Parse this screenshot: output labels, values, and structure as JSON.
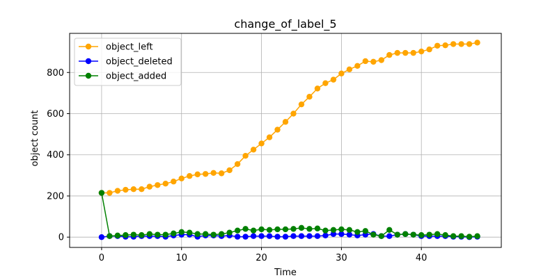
{
  "chart_data": {
    "type": "line",
    "title": "change_of_label_5",
    "xlabel": "Time",
    "ylabel": "object count",
    "xlim": [
      -4,
      50
    ],
    "ylim": [
      -50,
      990
    ],
    "xticks": [
      0,
      10,
      20,
      30,
      40
    ],
    "yticks": [
      0,
      200,
      400,
      600,
      800
    ],
    "grid": true,
    "legend_position": "top-left",
    "x": [
      0,
      1,
      2,
      3,
      4,
      5,
      6,
      7,
      8,
      9,
      10,
      11,
      12,
      13,
      14,
      15,
      16,
      17,
      18,
      19,
      20,
      21,
      22,
      23,
      24,
      25,
      26,
      27,
      28,
      29,
      30,
      31,
      32,
      33,
      34,
      35,
      36,
      37,
      38,
      39,
      40,
      41,
      42,
      43,
      44,
      45,
      46,
      47
    ],
    "series": [
      {
        "name": "object_left",
        "color": "#ffa500",
        "values": [
          215,
          215,
          225,
          230,
          233,
          233,
          245,
          253,
          260,
          270,
          285,
          297,
          305,
          307,
          312,
          310,
          325,
          355,
          395,
          425,
          455,
          485,
          522,
          560,
          600,
          645,
          682,
          722,
          748,
          765,
          795,
          815,
          832,
          855,
          852,
          860,
          885,
          895,
          895,
          895,
          902,
          912,
          930,
          932,
          938,
          938,
          938,
          945
        ]
      },
      {
        "name": "object_deleted",
        "color": "#0000ff",
        "values": [
          0,
          5,
          5,
          2,
          2,
          5,
          5,
          5,
          2,
          8,
          12,
          12,
          2,
          8,
          8,
          5,
          8,
          2,
          2,
          5,
          5,
          5,
          2,
          2,
          5,
          5,
          5,
          5,
          8,
          15,
          15,
          12,
          8,
          12,
          15,
          5,
          5,
          12,
          15,
          12,
          5,
          5,
          5,
          5,
          2,
          2,
          0,
          2
        ]
      },
      {
        "name": "object_added",
        "color": "#008000",
        "values": [
          215,
          5,
          8,
          10,
          12,
          10,
          15,
          12,
          12,
          18,
          25,
          22,
          15,
          15,
          12,
          15,
          22,
          32,
          40,
          32,
          38,
          35,
          38,
          38,
          40,
          45,
          40,
          42,
          32,
          35,
          38,
          35,
          25,
          30,
          12,
          5,
          35,
          12,
          15,
          12,
          10,
          12,
          15,
          10,
          5,
          5,
          2,
          5
        ]
      }
    ]
  }
}
